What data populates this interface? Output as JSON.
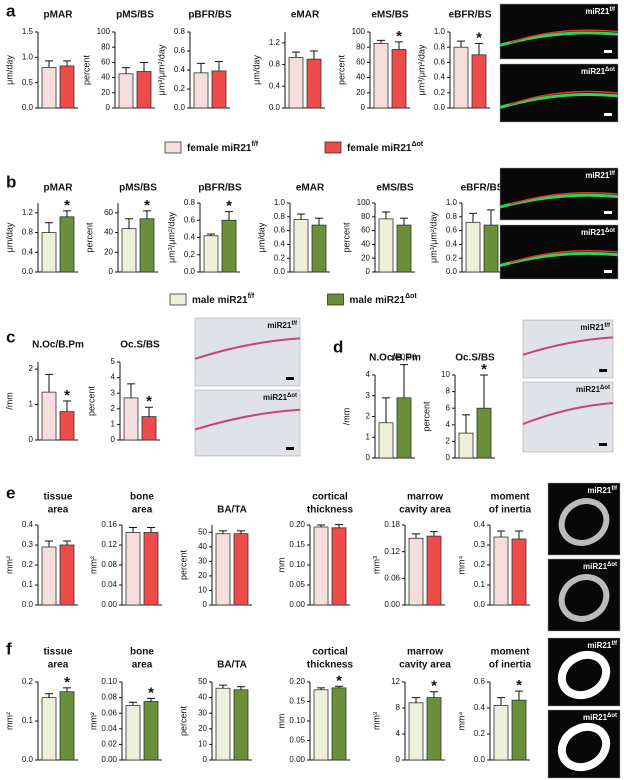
{
  "panels": [
    "a",
    "b",
    "c",
    "d",
    "e",
    "f"
  ],
  "legends": [
    {
      "entries": [
        {
          "name": "female miR21",
          "sup": "f/f",
          "color": "#f7dede"
        },
        {
          "name": "female miR21",
          "sup": "Δot",
          "color": "#ee4b4b"
        }
      ]
    },
    {
      "entries": [
        {
          "name": "male miR21",
          "sup": "f/f",
          "color": "#eef0dc"
        },
        {
          "name": "male miR21",
          "sup": "Δot",
          "color": "#6b8f3a"
        }
      ]
    }
  ],
  "images": [
    {
      "label": "miR21",
      "sup": "f/f"
    },
    {
      "label": "miR21",
      "sup": "Δot"
    },
    {
      "label": "miR21",
      "sup": "f/f"
    },
    {
      "label": "miR21",
      "sup": "Δot"
    },
    {
      "label": "miR21",
      "sup": "f/f"
    },
    {
      "label": "miR21",
      "sup": "Δot"
    },
    {
      "label": "miR21",
      "sup": "f/f"
    },
    {
      "label": "miR21",
      "sup": "Δot"
    },
    {
      "label": "miR21",
      "sup": "f/f"
    },
    {
      "label": "miR21",
      "sup": "Δot"
    },
    {
      "label": "miR21",
      "sup": "f/f"
    },
    {
      "label": "miR21",
      "sup": "Δot"
    }
  ],
  "chart_data": [
    {
      "type": "bar",
      "title": "pMAR",
      "ylabel": "μm/day",
      "categories": [
        null,
        null
      ],
      "values": [
        0.8,
        0.83
      ],
      "errors": [
        0.13,
        0.1
      ],
      "annotations": [
        null,
        null
      ],
      "colors": [
        "#f7dede",
        "#ee4b4b"
      ],
      "ylim": [
        0,
        1.5
      ],
      "yticks": [
        {
          "value": 0,
          "label": "0.0"
        },
        0.5,
        {
          "value": 1,
          "label": "1.0"
        },
        1.5
      ]
    },
    {
      "type": "bar",
      "title": "pMS/BS",
      "ylabel": "percent",
      "categories": [
        null,
        null
      ],
      "values": [
        45,
        48
      ],
      "errors": [
        8,
        12
      ],
      "annotations": [
        null,
        null
      ],
      "colors": [
        "#f7dede",
        "#ee4b4b"
      ],
      "ylim": [
        0,
        100
      ],
      "yticks": [
        0,
        20,
        40,
        60,
        80,
        100
      ]
    },
    {
      "type": "bar",
      "title": "pBFR/BS",
      "ylabel": "μm³/μm²/day",
      "categories": [
        null,
        null
      ],
      "values": [
        0.37,
        0.39
      ],
      "errors": [
        0.1,
        0.1
      ],
      "annotations": [
        null,
        null
      ],
      "colors": [
        "#f7dede",
        "#ee4b4b"
      ],
      "ylim": [
        0,
        0.8
      ],
      "yticks": [
        {
          "value": 0,
          "label": "0.0"
        },
        0.2,
        0.4,
        0.6,
        0.8
      ]
    },
    {
      "type": "bar",
      "title": "eMAR",
      "ylabel": "μm/day",
      "categories": [
        null,
        null
      ],
      "values": [
        0.93,
        0.9
      ],
      "errors": [
        0.1,
        0.15
      ],
      "annotations": [
        null,
        null
      ],
      "colors": [
        "#f7dede",
        "#ee4b4b"
      ],
      "ylim": [
        0,
        1.4
      ],
      "yticks": [
        {
          "value": 0,
          "label": "0.0"
        },
        0.4,
        0.8,
        1.2
      ]
    },
    {
      "type": "bar",
      "title": "eMS/BS",
      "ylabel": "percent",
      "categories": [
        null,
        null
      ],
      "values": [
        85,
        77
      ],
      "errors": [
        4,
        10
      ],
      "annotations": [
        null,
        "*"
      ],
      "colors": [
        "#f7dede",
        "#ee4b4b"
      ],
      "ylim": [
        0,
        100
      ],
      "yticks": [
        0,
        20,
        40,
        60,
        80,
        100
      ]
    },
    {
      "type": "bar",
      "title": "eBFR/BS",
      "ylabel": "μm³/μm²/day",
      "categories": [
        null,
        null
      ],
      "values": [
        0.8,
        0.7
      ],
      "errors": [
        0.08,
        0.15
      ],
      "annotations": [
        null,
        "*"
      ],
      "colors": [
        "#f7dede",
        "#ee4b4b"
      ],
      "ylim": [
        0,
        1
      ],
      "yticks": [
        {
          "value": 0,
          "label": "0.0"
        },
        0.2,
        0.4,
        0.6,
        0.8,
        {
          "value": 1,
          "label": "1.0"
        }
      ]
    },
    {
      "type": "bar",
      "title": "pMAR",
      "ylabel": "μm/day",
      "categories": [
        null,
        null
      ],
      "values": [
        0.8,
        1.12
      ],
      "errors": [
        0.2,
        0.12
      ],
      "annotations": [
        null,
        "*"
      ],
      "colors": [
        "#eef0dc",
        "#6b8f3a"
      ],
      "ylim": [
        0,
        1.4
      ],
      "yticks": [
        {
          "value": 0,
          "label": "0.0"
        },
        0.4,
        0.8,
        1.2
      ]
    },
    {
      "type": "bar",
      "title": "pMS/BS",
      "ylabel": "percent",
      "categories": [
        null,
        null
      ],
      "values": [
        44,
        54
      ],
      "errors": [
        10,
        8
      ],
      "annotations": [
        null,
        "*"
      ],
      "colors": [
        "#eef0dc",
        "#6b8f3a"
      ],
      "ylim": [
        0,
        70
      ],
      "yticks": [
        0,
        20,
        40,
        60
      ]
    },
    {
      "type": "bar",
      "title": "pBFR/BS",
      "ylabel": "μm³/μm²/day",
      "categories": [
        null,
        null
      ],
      "values": [
        0.42,
        0.6
      ],
      "errors": [
        0.02,
        0.1
      ],
      "annotations": [
        null,
        "*"
      ],
      "colors": [
        "#eef0dc",
        "#6b8f3a"
      ],
      "ylim": [
        0,
        0.8
      ],
      "yticks": [
        {
          "value": 0,
          "label": "0.0"
        },
        0.2,
        0.4,
        0.6,
        0.8
      ]
    },
    {
      "type": "bar",
      "title": "eMAR",
      "ylabel": "μm/day",
      "categories": [
        null,
        null
      ],
      "values": [
        0.76,
        0.68
      ],
      "errors": [
        0.08,
        0.1
      ],
      "annotations": [
        null,
        null
      ],
      "colors": [
        "#eef0dc",
        "#6b8f3a"
      ],
      "ylim": [
        0,
        1
      ],
      "yticks": [
        {
          "value": 0,
          "label": "0.0"
        },
        0.2,
        0.4,
        0.6,
        0.8,
        {
          "value": 1,
          "label": "1.0"
        }
      ]
    },
    {
      "type": "bar",
      "title": "eMS/BS",
      "ylabel": "percent",
      "categories": [
        null,
        null
      ],
      "values": [
        77,
        68
      ],
      "errors": [
        10,
        10
      ],
      "annotations": [
        null,
        null
      ],
      "colors": [
        "#eef0dc",
        "#6b8f3a"
      ],
      "ylim": [
        0,
        100
      ],
      "yticks": [
        0,
        20,
        40,
        60,
        80,
        100
      ]
    },
    {
      "type": "bar",
      "title": "eBFR/BS",
      "ylabel": "μm³/μm²/day",
      "categories": [
        null,
        null
      ],
      "values": [
        0.72,
        0.68
      ],
      "errors": [
        0.13,
        0.22
      ],
      "annotations": [
        null,
        null
      ],
      "colors": [
        "#eef0dc",
        "#6b8f3a"
      ],
      "ylim": [
        0,
        1
      ],
      "yticks": [
        {
          "value": 0,
          "label": "0.0"
        },
        0.2,
        0.4,
        0.6,
        0.8,
        {
          "value": 1,
          "label": "1.0"
        }
      ]
    },
    {
      "type": "bar",
      "title": "N.Oc/B.Pm",
      "ylabel": "/mm",
      "categories": [
        null,
        null
      ],
      "values": [
        1.35,
        0.8
      ],
      "errors": [
        0.5,
        0.3
      ],
      "annotations": [
        null,
        "*"
      ],
      "colors": [
        "#f7dede",
        "#ee4b4b"
      ],
      "ylim": [
        0,
        2.2
      ],
      "yticks": [
        0,
        1,
        2
      ]
    },
    {
      "type": "bar",
      "title": "Oc.S/BS",
      "ylabel": "percent",
      "categories": [
        null,
        null
      ],
      "values": [
        2.7,
        1.5
      ],
      "errors": [
        0.9,
        0.6
      ],
      "annotations": [
        null,
        "*"
      ],
      "colors": [
        "#f7dede",
        "#ee4b4b"
      ],
      "ylim": [
        0,
        5
      ],
      "yticks": [
        0,
        1,
        2,
        3,
        4,
        5
      ]
    },
    {
      "type": "bar",
      "title": "N.Oc/B.Pm",
      "ylabel": "/mm",
      "categories": [
        null,
        null
      ],
      "values": [
        1.7,
        2.9
      ],
      "errors": [
        1.2,
        1.6
      ],
      "annotations": [
        null,
        "p=0.06"
      ],
      "colors": [
        "#eef0dc",
        "#6b8f3a"
      ],
      "ylim": [
        0,
        4
      ],
      "yticks": [
        0,
        1,
        2,
        3,
        4
      ]
    },
    {
      "type": "bar",
      "title": "Oc.S/BS",
      "ylabel": "percent",
      "categories": [
        null,
        null
      ],
      "values": [
        3,
        6
      ],
      "errors": [
        2.2,
        4
      ],
      "annotations": [
        null,
        "*"
      ],
      "colors": [
        "#eef0dc",
        "#6b8f3a"
      ],
      "ylim": [
        0,
        10
      ],
      "yticks": [
        0,
        2,
        4,
        6,
        8,
        10
      ]
    },
    {
      "type": "bar",
      "title": [
        "tissue",
        "area"
      ],
      "ylabel": "mm²",
      "categories": [
        null,
        null
      ],
      "values": [
        0.29,
        0.3
      ],
      "errors": [
        0.03,
        0.02
      ],
      "annotations": [
        null,
        null
      ],
      "colors": [
        "#f7dede",
        "#ee4b4b"
      ],
      "ylim": [
        0,
        0.4
      ],
      "yticks": [
        {
          "value": 0,
          "label": "0.0"
        },
        0.1,
        0.2,
        0.3,
        0.4
      ]
    },
    {
      "type": "bar",
      "title": [
        "bone",
        "area"
      ],
      "ylabel": "mm²",
      "categories": [
        null,
        null
      ],
      "values": [
        0.145,
        0.145
      ],
      "errors": [
        0.01,
        0.01
      ],
      "annotations": [
        null,
        null
      ],
      "colors": [
        "#f7dede",
        "#ee4b4b"
      ],
      "ylim": [
        0,
        0.16
      ],
      "yticks": [
        {
          "value": 0,
          "label": "0.00"
        },
        0.04,
        0.08,
        0.12,
        0.16
      ]
    },
    {
      "type": "bar",
      "title": "BA/TA",
      "ylabel": "percent",
      "categories": [
        null,
        null
      ],
      "values": [
        49,
        49
      ],
      "errors": [
        2,
        2
      ],
      "annotations": [
        null,
        null
      ],
      "colors": [
        "#f7dede",
        "#ee4b4b"
      ],
      "ylim": [
        0,
        55
      ],
      "yticks": [
        0,
        10,
        20,
        30,
        40,
        50
      ]
    },
    {
      "type": "bar",
      "title": [
        "cortical",
        "thickness"
      ],
      "ylabel": "mm",
      "categories": [
        null,
        null
      ],
      "values": [
        0.195,
        0.193
      ],
      "errors": [
        0.005,
        0.008
      ],
      "annotations": [
        null,
        null
      ],
      "colors": [
        "#f7dede",
        "#ee4b4b"
      ],
      "ylim": [
        0,
        0.2
      ],
      "yticks": [
        {
          "value": 0,
          "label": "0.00"
        },
        0.05,
        {
          "value": 0.1,
          "label": "0.10"
        },
        0.15,
        {
          "value": 0.2,
          "label": "0.20"
        }
      ]
    },
    {
      "type": "bar",
      "title": [
        "marrow",
        "cavity area"
      ],
      "ylabel": "mm³",
      "categories": [
        null,
        null
      ],
      "values": [
        0.15,
        0.155
      ],
      "errors": [
        0.01,
        0.01
      ],
      "annotations": [
        null,
        null
      ],
      "colors": [
        "#f7dede",
        "#ee4b4b"
      ],
      "ylim": [
        0,
        0.18
      ],
      "yticks": [
        {
          "value": 0,
          "label": "0.00"
        },
        0.06,
        0.12,
        0.18
      ]
    },
    {
      "type": "bar",
      "title": [
        "moment",
        "of inertia"
      ],
      "ylabel": "mm⁴",
      "categories": [
        null,
        null
      ],
      "values": [
        0.34,
        0.33
      ],
      "errors": [
        0.03,
        0.04
      ],
      "annotations": [
        null,
        null
      ],
      "colors": [
        "#f7dede",
        "#ee4b4b"
      ],
      "ylim": [
        0,
        0.4
      ],
      "yticks": [
        {
          "value": 0,
          "label": "0.0"
        },
        0.1,
        0.2,
        0.3,
        0.4
      ]
    },
    {
      "type": "bar",
      "title": [
        "tissue",
        "area"
      ],
      "ylabel": "mm²",
      "categories": [
        null,
        null
      ],
      "values": [
        0.16,
        0.175
      ],
      "errors": [
        0.01,
        0.01
      ],
      "annotations": [
        null,
        "*"
      ],
      "colors": [
        "#eef0dc",
        "#6b8f3a"
      ],
      "ylim": [
        0,
        0.2
      ],
      "yticks": [
        {
          "value": 0,
          "label": "0.0"
        },
        0.1,
        0.2
      ]
    },
    {
      "type": "bar",
      "title": [
        "bone",
        "area"
      ],
      "ylabel": "mm²",
      "categories": [
        null,
        null
      ],
      "values": [
        0.07,
        0.075
      ],
      "errors": [
        0.004,
        0.004
      ],
      "annotations": [
        null,
        "*"
      ],
      "colors": [
        "#eef0dc",
        "#6b8f3a"
      ],
      "ylim": [
        0,
        0.1
      ],
      "yticks": [
        {
          "value": 0,
          "label": "0.00"
        },
        0.02,
        0.04,
        0.06,
        0.08,
        {
          "value": 0.1,
          "label": "0.10"
        }
      ]
    },
    {
      "type": "bar",
      "title": "BA/TA",
      "ylabel": "percent",
      "categories": [
        null,
        null
      ],
      "values": [
        46,
        45
      ],
      "errors": [
        2,
        2
      ],
      "annotations": [
        null,
        null
      ],
      "colors": [
        "#eef0dc",
        "#6b8f3a"
      ],
      "ylim": [
        0,
        50
      ],
      "yticks": [
        0,
        10,
        20,
        30,
        40,
        50
      ]
    },
    {
      "type": "bar",
      "title": [
        "cortical",
        "thickness"
      ],
      "ylabel": "mm",
      "categories": [
        null,
        null
      ],
      "values": [
        0.18,
        0.185
      ],
      "errors": [
        0.005,
        0.004
      ],
      "annotations": [
        null,
        "*"
      ],
      "colors": [
        "#eef0dc",
        "#6b8f3a"
      ],
      "ylim": [
        0,
        0.2
      ],
      "yticks": [
        {
          "value": 0,
          "label": "0.00"
        },
        0.05,
        {
          "value": 0.1,
          "label": "0.10"
        },
        0.15,
        {
          "value": 0.2,
          "label": "0.20"
        }
      ]
    },
    {
      "type": "bar",
      "title": [
        "marrow",
        "cavity area"
      ],
      "ylabel": "mm³",
      "categories": [
        null,
        null
      ],
      "values": [
        8.8,
        9.6
      ],
      "errors": [
        0.8,
        0.9
      ],
      "annotations": [
        null,
        "*"
      ],
      "colors": [
        "#eef0dc",
        "#6b8f3a"
      ],
      "ylim": [
        0,
        12
      ],
      "yticks": [
        0,
        4,
        8,
        12
      ]
    },
    {
      "type": "bar",
      "title": [
        "moment",
        "of inertia"
      ],
      "ylabel": "mm⁴",
      "categories": [
        null,
        null
      ],
      "values": [
        0.42,
        0.46
      ],
      "errors": [
        0.06,
        0.07
      ],
      "annotations": [
        null,
        "*"
      ],
      "colors": [
        "#eef0dc",
        "#6b8f3a"
      ],
      "ylim": [
        0,
        0.6
      ],
      "yticks": [
        {
          "value": 0,
          "label": "0.0"
        },
        0.2,
        0.4,
        0.6
      ]
    }
  ]
}
